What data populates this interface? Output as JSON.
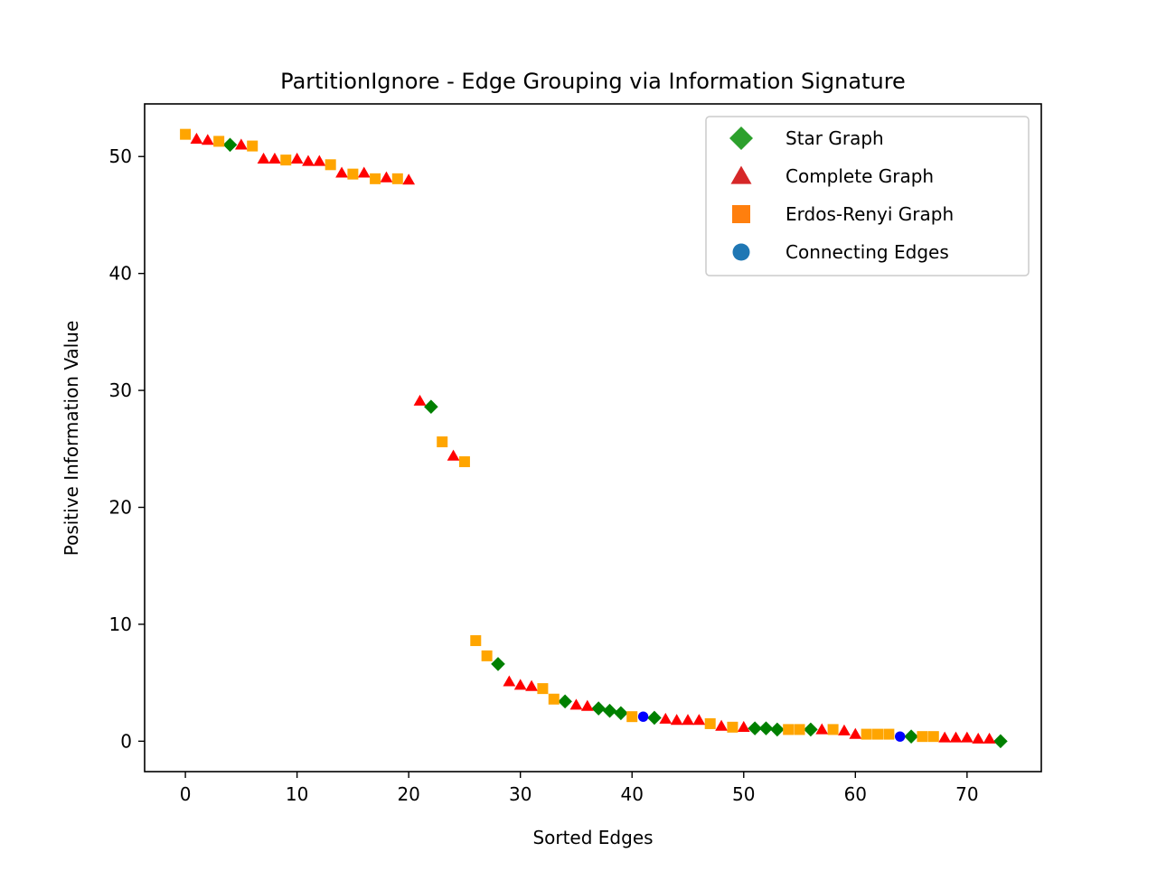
{
  "chart_data": {
    "type": "scatter",
    "title": "PartitionIgnore - Edge Grouping via Information Signature",
    "xlabel": "Sorted Edges",
    "ylabel": "Positive Information Value",
    "xlim": [
      -3.65,
      76.65
    ],
    "ylim": [
      -2.6,
      54.5
    ],
    "xticks": [
      0,
      10,
      20,
      30,
      40,
      50,
      60,
      70
    ],
    "yticks": [
      0,
      10,
      20,
      30,
      40,
      50
    ],
    "grid": false,
    "legend_placement": "top-right",
    "series": [
      {
        "name": "Star Graph",
        "marker": "diamond",
        "color": "#008000",
        "legend_color": "#2ca02c",
        "points": [
          [
            4,
            51.0
          ],
          [
            22,
            28.6
          ],
          [
            28,
            6.6
          ],
          [
            34,
            3.4
          ],
          [
            37,
            2.8
          ],
          [
            38,
            2.6
          ],
          [
            39,
            2.4
          ],
          [
            42,
            2.0
          ],
          [
            51,
            1.1
          ],
          [
            52,
            1.1
          ],
          [
            53,
            1.0
          ],
          [
            56,
            1.0
          ],
          [
            65,
            0.4
          ],
          [
            73,
            0.0
          ]
        ]
      },
      {
        "name": "Complete Graph",
        "marker": "triangle",
        "color": "#ff0000",
        "legend_color": "#d62728",
        "points": [
          [
            1,
            51.5
          ],
          [
            2,
            51.4
          ],
          [
            5,
            51.0
          ],
          [
            7,
            49.8
          ],
          [
            8,
            49.8
          ],
          [
            10,
            49.8
          ],
          [
            11,
            49.6
          ],
          [
            12,
            49.6
          ],
          [
            14,
            48.6
          ],
          [
            16,
            48.6
          ],
          [
            18,
            48.2
          ],
          [
            20,
            48.0
          ],
          [
            21,
            29.1
          ],
          [
            24,
            24.4
          ],
          [
            29,
            5.1
          ],
          [
            30,
            4.8
          ],
          [
            31,
            4.7
          ],
          [
            35,
            3.1
          ],
          [
            36,
            3.0
          ],
          [
            43,
            1.9
          ],
          [
            44,
            1.8
          ],
          [
            45,
            1.8
          ],
          [
            46,
            1.8
          ],
          [
            48,
            1.3
          ],
          [
            50,
            1.2
          ],
          [
            57,
            1.0
          ],
          [
            59,
            0.9
          ],
          [
            60,
            0.6
          ],
          [
            68,
            0.3
          ],
          [
            69,
            0.3
          ],
          [
            70,
            0.3
          ],
          [
            71,
            0.2
          ],
          [
            72,
            0.2
          ]
        ]
      },
      {
        "name": "Erdos-Renyi Graph",
        "marker": "square",
        "color": "#ffa500",
        "legend_color": "#ff7f0e",
        "points": [
          [
            0,
            51.9
          ],
          [
            3,
            51.3
          ],
          [
            6,
            50.9
          ],
          [
            9,
            49.7
          ],
          [
            13,
            49.3
          ],
          [
            15,
            48.5
          ],
          [
            17,
            48.1
          ],
          [
            19,
            48.1
          ],
          [
            23,
            25.6
          ],
          [
            25,
            23.9
          ],
          [
            26,
            8.6
          ],
          [
            27,
            7.3
          ],
          [
            32,
            4.5
          ],
          [
            33,
            3.6
          ],
          [
            40,
            2.1
          ],
          [
            47,
            1.5
          ],
          [
            49,
            1.2
          ],
          [
            54,
            1.0
          ],
          [
            55,
            1.0
          ],
          [
            58,
            1.0
          ],
          [
            61,
            0.6
          ],
          [
            62,
            0.6
          ],
          [
            63,
            0.6
          ],
          [
            66,
            0.4
          ],
          [
            67,
            0.4
          ]
        ]
      },
      {
        "name": "Connecting Edges",
        "marker": "circle",
        "color": "#0000ff",
        "legend_color": "#1f77b4",
        "points": [
          [
            41,
            2.1
          ],
          [
            64,
            0.4
          ]
        ]
      }
    ]
  }
}
